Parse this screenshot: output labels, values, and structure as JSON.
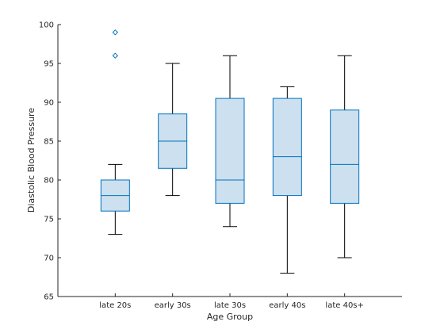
{
  "chart_data": {
    "type": "box",
    "xlabel": "Age Group",
    "ylabel": "Diastolic Blood Pressure",
    "ylim": [
      65,
      100
    ],
    "yticks": [
      65,
      70,
      75,
      80,
      85,
      90,
      95,
      100
    ],
    "grid": false,
    "box_fill_color": "#cce0ef",
    "box_edge_color": "#0072bd",
    "whisker_color": "#000000",
    "outlier_color": "#0072bd",
    "categories": [
      "late 20s",
      "early 30s",
      "late 30s",
      "early 40s",
      "late 40s+"
    ],
    "boxes": [
      {
        "category": "late 20s",
        "whisker_low": 73,
        "q1": 76,
        "median": 78,
        "q3": 80,
        "whisker_high": 82,
        "outliers": [
          96,
          99
        ]
      },
      {
        "category": "early 30s",
        "whisker_low": 78,
        "q1": 81.5,
        "median": 85,
        "q3": 88.5,
        "whisker_high": 95,
        "outliers": []
      },
      {
        "category": "late 30s",
        "whisker_low": 74,
        "q1": 77,
        "median": 80,
        "q3": 90.5,
        "whisker_high": 96,
        "outliers": []
      },
      {
        "category": "early 40s",
        "whisker_low": 68,
        "q1": 78,
        "median": 83,
        "q3": 90.5,
        "whisker_high": 92,
        "outliers": []
      },
      {
        "category": "late 40s+",
        "whisker_low": 70,
        "q1": 77,
        "median": 82,
        "q3": 89,
        "whisker_high": 96,
        "outliers": []
      }
    ]
  }
}
